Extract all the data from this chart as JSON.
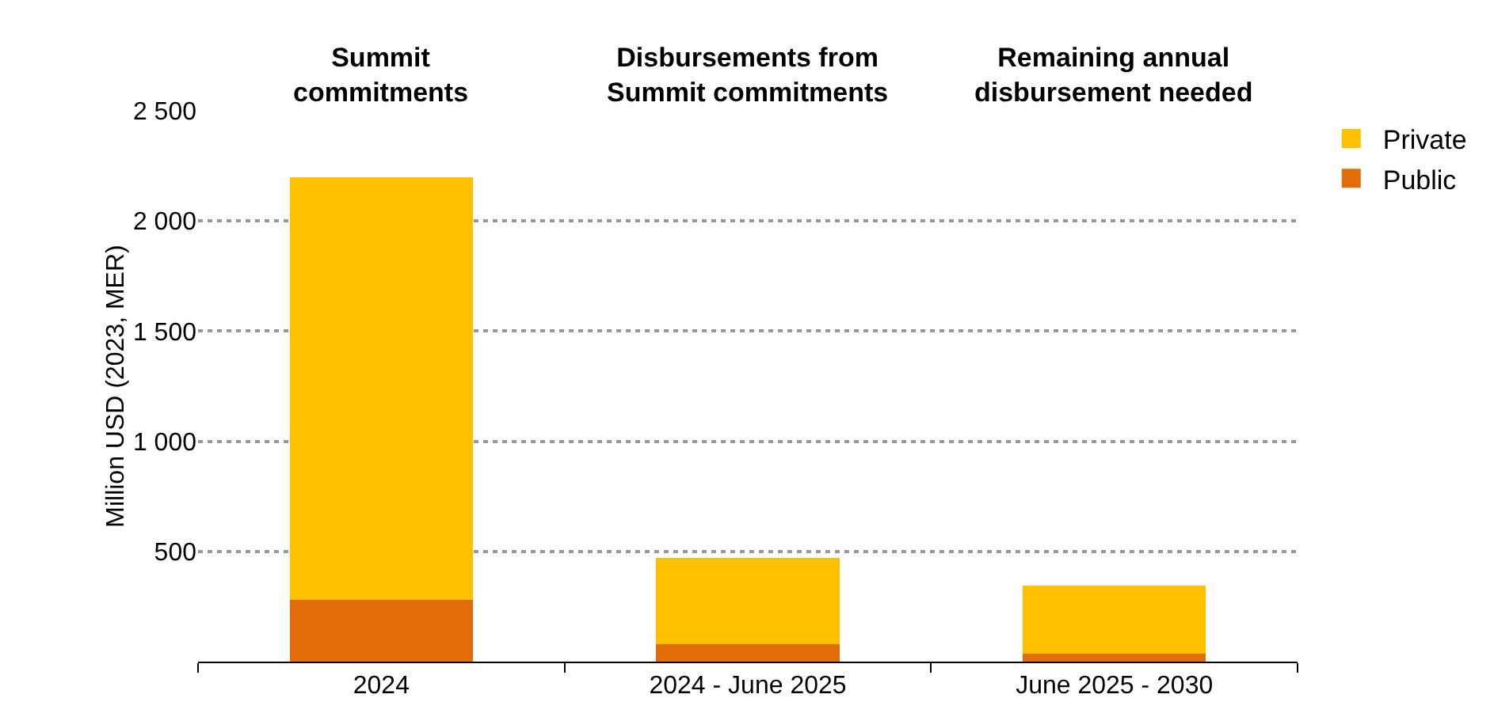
{
  "chart_data": {
    "type": "bar",
    "stacked": true,
    "ylabel": "Million USD (2023, MER)",
    "categories": [
      "2024",
      "2024 - June 2025",
      "June 2025 - 2030"
    ],
    "series": [
      {
        "name": "Public",
        "color": "#e36c0a",
        "values": [
          280,
          80,
          35
        ]
      },
      {
        "name": "Private",
        "color": "#ffc000",
        "values": [
          1920,
          390,
          310
        ]
      }
    ],
    "ylim": [
      0,
      2500
    ],
    "yticks": [
      500,
      1000,
      1500,
      2000,
      2500
    ],
    "grid": "y",
    "legend": "top right",
    "annotations": [
      "Summit commitments",
      "Disbursements from Summit commitments",
      "Remaining annual disbursement needed"
    ]
  }
}
